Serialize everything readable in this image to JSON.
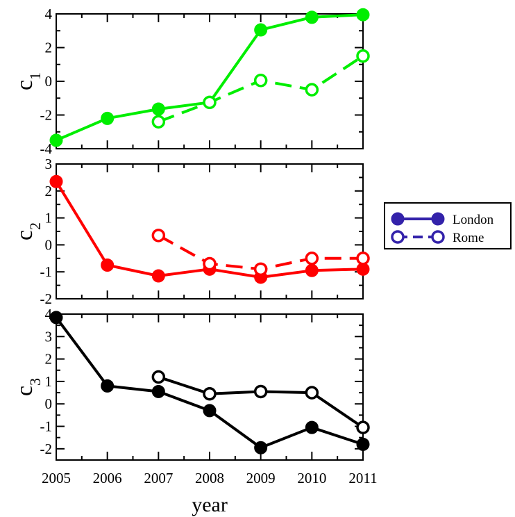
{
  "chart_data": [
    {
      "type": "line",
      "panel": "c1",
      "ylabel_main": "c",
      "ylabel_sub": "1",
      "xlabel": "",
      "x": [
        2005,
        2006,
        2007,
        2008,
        2009,
        2010,
        2011
      ],
      "xlim": [
        2005,
        2011
      ],
      "ylim": [
        -4,
        4
      ],
      "yticks": [
        -4,
        -2,
        0,
        2,
        4
      ],
      "ytick_labels": [
        "-4",
        "-2",
        "0",
        "2",
        "4"
      ],
      "color": "#00ee00",
      "series": [
        {
          "name": "London",
          "style": "solid-filled",
          "points": [
            [
              2005,
              -3.5
            ],
            [
              2006,
              -2.2
            ],
            [
              2007,
              -1.65
            ],
            [
              2008,
              -1.25
            ],
            [
              2009,
              3.05
            ],
            [
              2010,
              3.8
            ],
            [
              2011,
              3.95
            ]
          ]
        },
        {
          "name": "Rome",
          "style": "dashed-open",
          "points": [
            [
              2007,
              -2.4
            ],
            [
              2008,
              -1.25
            ],
            [
              2009,
              0.05
            ],
            [
              2010,
              -0.5
            ],
            [
              2011,
              1.5
            ]
          ]
        }
      ]
    },
    {
      "type": "line",
      "panel": "c2",
      "ylabel_main": "c",
      "ylabel_sub": "2",
      "xlabel": "",
      "x": [
        2005,
        2006,
        2007,
        2008,
        2009,
        2010,
        2011
      ],
      "xlim": [
        2005,
        2011
      ],
      "ylim": [
        -2,
        3
      ],
      "yticks": [
        -2,
        -1,
        0,
        1,
        2,
        3
      ],
      "ytick_labels": [
        "-2",
        "-1",
        "0",
        "1",
        "2",
        "3"
      ],
      "color": "#ff0000",
      "series": [
        {
          "name": "London",
          "style": "solid-filled",
          "points": [
            [
              2005,
              2.35
            ],
            [
              2006,
              -0.75
            ],
            [
              2007,
              -1.15
            ],
            [
              2008,
              -0.9
            ],
            [
              2009,
              -1.2
            ],
            [
              2010,
              -0.95
            ],
            [
              2011,
              -0.9
            ]
          ]
        },
        {
          "name": "Rome",
          "style": "dashed-open",
          "points": [
            [
              2007,
              0.35
            ],
            [
              2008,
              -0.7
            ],
            [
              2009,
              -0.9
            ],
            [
              2010,
              -0.5
            ],
            [
              2011,
              -0.5
            ]
          ]
        }
      ]
    },
    {
      "type": "line",
      "panel": "c3",
      "ylabel_main": "c",
      "ylabel_sub": "3",
      "xlabel": "year",
      "x": [
        2005,
        2006,
        2007,
        2008,
        2009,
        2010,
        2011
      ],
      "xtick_labels": [
        "2005",
        "2006",
        "2007",
        "2008",
        "2009",
        "2010",
        "2011"
      ],
      "xlim": [
        2005,
        2011
      ],
      "ylim": [
        -2.5,
        4
      ],
      "yticks": [
        -2,
        -1,
        0,
        1,
        2,
        3,
        4
      ],
      "ytick_labels": [
        "-2",
        "-1",
        "0",
        "1",
        "2",
        "3",
        "4"
      ],
      "color": "#000000",
      "series": [
        {
          "name": "London",
          "style": "solid-filled",
          "points": [
            [
              2005,
              3.85
            ],
            [
              2006,
              0.8
            ],
            [
              2007,
              0.55
            ],
            [
              2008,
              -0.3
            ],
            [
              2009,
              -1.95
            ],
            [
              2010,
              -1.05
            ],
            [
              2011,
              -1.8
            ]
          ]
        },
        {
          "name": "Rome",
          "style": "solid-open",
          "points": [
            [
              2007,
              1.2
            ],
            [
              2008,
              0.45
            ],
            [
              2009,
              0.55
            ],
            [
              2010,
              0.5
            ],
            [
              2011,
              -1.05
            ]
          ]
        }
      ]
    }
  ],
  "legend": {
    "placement": "right",
    "color": "#3322aa",
    "entries": [
      {
        "label": "London",
        "style": "solid-filled"
      },
      {
        "label": "Rome",
        "style": "dashed-open"
      }
    ]
  }
}
